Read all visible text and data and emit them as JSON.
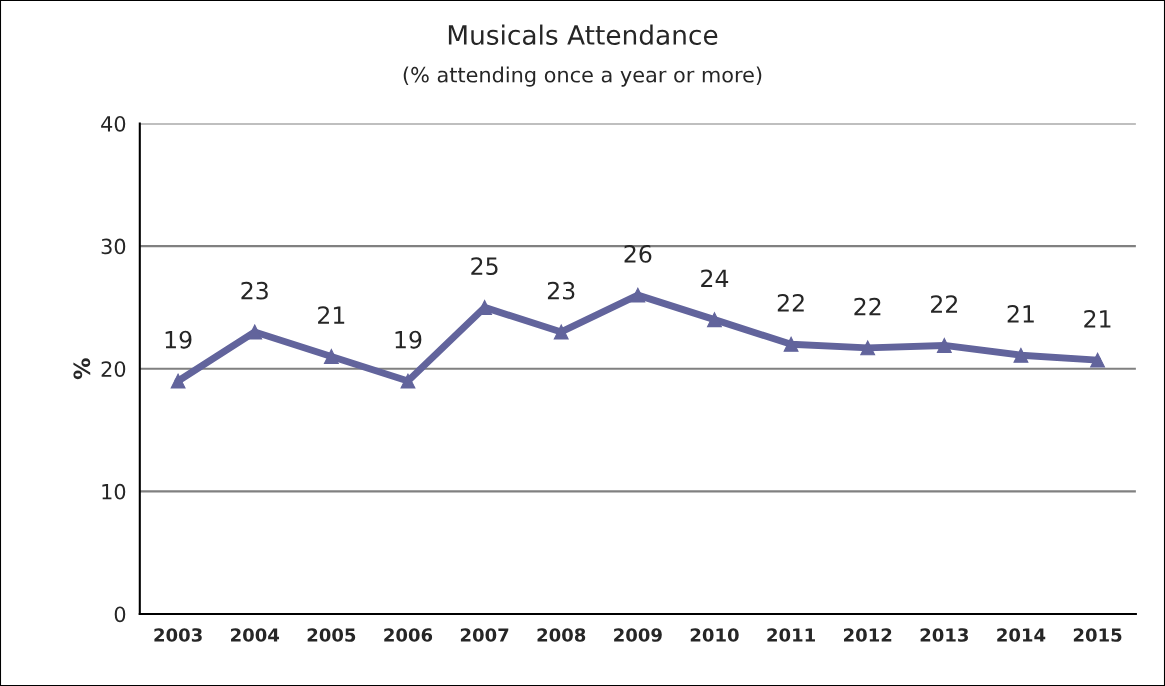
{
  "chart_data": {
    "type": "line",
    "title": "Musicals Attendance",
    "subtitle": "(% attending once a year or more)",
    "ylabel": "%",
    "categories": [
      "2003",
      "2004",
      "2005",
      "2006",
      "2007",
      "2008",
      "2009",
      "2010",
      "2011",
      "2012",
      "2013",
      "2014",
      "2015"
    ],
    "series": [
      {
        "color": "#62649c",
        "values": [
          19,
          23,
          21,
          19,
          25,
          23,
          26,
          24,
          22,
          21.7,
          21.9,
          21.1,
          20.7
        ],
        "value_labels": [
          "19",
          "23",
          "21",
          "19",
          "25",
          "23",
          "26",
          "24",
          "22",
          "22",
          "22",
          "21",
          "21"
        ]
      }
    ],
    "ylim": [
      0,
      40
    ],
    "yticks": [
      0,
      10,
      20,
      30,
      40
    ],
    "grid": "y",
    "marker": "triangle",
    "line_style": "solid",
    "legend": false
  }
}
